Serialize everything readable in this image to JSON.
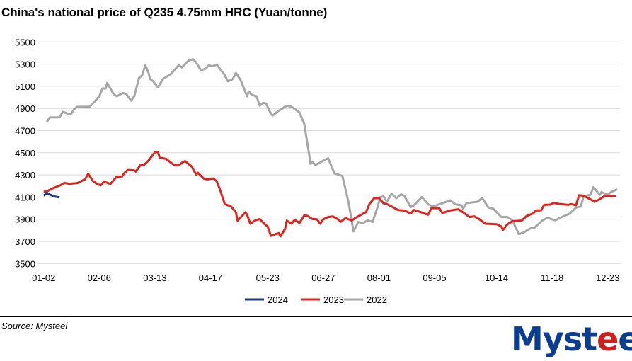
{
  "title": "China's national price of Q235 4.75mm HRC (Yuan/tonne)",
  "source": "Source: Mysteel",
  "logo": {
    "text": "Mysteel",
    "colors": {
      "main": "#0a3d8f",
      "accent": "#d11f1f"
    }
  },
  "chart_data": {
    "type": "line",
    "title": "China's national price of Q235 4.75mm HRC (Yuan/tonne)",
    "xlabel": "",
    "ylabel": "",
    "ylim": [
      3500,
      5500
    ],
    "yticks": [
      3500,
      3700,
      3900,
      4100,
      4300,
      4500,
      4700,
      4900,
      5100,
      5300,
      5500
    ],
    "xticks": [
      "01-02",
      "02-06",
      "03-13",
      "04-17",
      "05-23",
      "06-27",
      "08-01",
      "09-05",
      "10-14",
      "11-18",
      "12-23"
    ],
    "grid": "horizontal",
    "legend": "bottom",
    "series": [
      {
        "name": "2024",
        "color": "#1f3a8a",
        "points": [
          [
            "01-02",
            4112
          ],
          [
            "01-04",
            4137
          ],
          [
            "01-07",
            4115
          ],
          [
            "01-09",
            4105
          ],
          [
            "01-12",
            4097
          ]
        ]
      },
      {
        "name": "2023",
        "color": "#e0231c",
        "points": [
          [
            "01-02",
            4150
          ],
          [
            "01-04",
            4150
          ],
          [
            "01-07",
            4175
          ],
          [
            "01-10",
            4192
          ],
          [
            "01-13",
            4210
          ],
          [
            "01-15",
            4228
          ],
          [
            "01-18",
            4220
          ],
          [
            "01-23",
            4225
          ],
          [
            "01-28",
            4260
          ],
          [
            "01-30",
            4310
          ],
          [
            "02-02",
            4245
          ],
          [
            "02-05",
            4215
          ],
          [
            "02-07",
            4207
          ],
          [
            "02-09",
            4240
          ],
          [
            "02-13",
            4218
          ],
          [
            "02-17",
            4285
          ],
          [
            "02-20",
            4280
          ],
          [
            "02-22",
            4320
          ],
          [
            "02-24",
            4345
          ],
          [
            "02-28",
            4340
          ],
          [
            "03-01",
            4330
          ],
          [
            "03-04",
            4390
          ],
          [
            "03-06",
            4388
          ],
          [
            "03-09",
            4430
          ],
          [
            "03-13",
            4505
          ],
          [
            "03-15",
            4505
          ],
          [
            "03-16",
            4455
          ],
          [
            "03-20",
            4445
          ],
          [
            "03-25",
            4390
          ],
          [
            "03-28",
            4385
          ],
          [
            "03-30",
            4410
          ],
          [
            "04-01",
            4425
          ],
          [
            "04-05",
            4377
          ],
          [
            "04-08",
            4303
          ],
          [
            "04-09",
            4320
          ],
          [
            "04-13",
            4265
          ],
          [
            "04-15",
            4260
          ],
          [
            "04-19",
            4267
          ],
          [
            "04-21",
            4240
          ],
          [
            "04-23",
            4165
          ],
          [
            "04-26",
            4037
          ],
          [
            "04-30",
            4015
          ],
          [
            "05-03",
            3962
          ],
          [
            "05-04",
            3887
          ],
          [
            "05-09",
            3962
          ],
          [
            "05-10",
            3940
          ],
          [
            "05-12",
            3860
          ],
          [
            "05-15",
            3888
          ],
          [
            "05-18",
            3902
          ],
          [
            "05-21",
            3856
          ],
          [
            "05-23",
            3835
          ],
          [
            "05-25",
            3750
          ],
          [
            "05-30",
            3775
          ],
          [
            "05-31",
            3745
          ],
          [
            "06-03",
            3813
          ],
          [
            "06-04",
            3888
          ],
          [
            "06-07",
            3860
          ],
          [
            "06-09",
            3894
          ],
          [
            "06-12",
            3866
          ],
          [
            "06-14",
            3910
          ],
          [
            "06-15",
            3936
          ],
          [
            "06-17",
            3930
          ],
          [
            "06-20",
            3902
          ],
          [
            "06-23",
            3900
          ],
          [
            "06-25",
            3860
          ],
          [
            "06-27",
            3900
          ],
          [
            "06-30",
            3920
          ],
          [
            "07-03",
            3925
          ],
          [
            "07-06",
            3902
          ],
          [
            "07-08",
            3877
          ],
          [
            "07-11",
            3910
          ],
          [
            "07-15",
            3888
          ],
          [
            "07-17",
            3910
          ],
          [
            "07-24",
            3966
          ],
          [
            "07-26",
            4037
          ],
          [
            "07-29",
            4090
          ],
          [
            "08-01",
            4090
          ],
          [
            "08-04",
            4043
          ],
          [
            "08-06",
            4037
          ],
          [
            "08-09",
            4015
          ],
          [
            "08-13",
            3983
          ],
          [
            "08-16",
            3980
          ],
          [
            "08-18",
            3973
          ],
          [
            "08-21",
            3952
          ],
          [
            "08-23",
            3983
          ],
          [
            "08-27",
            3966
          ],
          [
            "09-01",
            3940
          ],
          [
            "09-03",
            4000
          ],
          [
            "09-08",
            4000
          ],
          [
            "09-10",
            3955
          ],
          [
            "09-14",
            3977
          ],
          [
            "09-20",
            3990
          ],
          [
            "09-23",
            3962
          ],
          [
            "09-27",
            3920
          ],
          [
            "09-30",
            3926
          ],
          [
            "10-03",
            3902
          ],
          [
            "10-07",
            3860
          ],
          [
            "10-14",
            3855
          ],
          [
            "10-17",
            3835
          ],
          [
            "10-18",
            3802
          ],
          [
            "10-21",
            3856
          ],
          [
            "10-24",
            3882
          ],
          [
            "10-30",
            3888
          ],
          [
            "11-02",
            3930
          ],
          [
            "11-06",
            3952
          ],
          [
            "11-08",
            3980
          ],
          [
            "11-11",
            3980
          ],
          [
            "11-13",
            4030
          ],
          [
            "11-17",
            4032
          ],
          [
            "11-19",
            4047
          ],
          [
            "11-23",
            4037
          ],
          [
            "11-28",
            4030
          ],
          [
            "11-30",
            4037
          ],
          [
            "12-03",
            4025
          ],
          [
            "12-05",
            4117
          ],
          [
            "12-08",
            4110
          ],
          [
            "12-15",
            4058
          ],
          [
            "12-19",
            4090
          ],
          [
            "12-21",
            4110
          ],
          [
            "12-28",
            4107
          ]
        ]
      },
      {
        "name": "2022",
        "color": "#a6a6a6",
        "points": [
          [
            "01-04",
            4780
          ],
          [
            "01-06",
            4820
          ],
          [
            "01-12",
            4820
          ],
          [
            "01-14",
            4870
          ],
          [
            "01-19",
            4845
          ],
          [
            "01-21",
            4890
          ],
          [
            "01-23",
            4915
          ],
          [
            "01-31",
            4915
          ],
          [
            "02-06",
            5010
          ],
          [
            "02-08",
            5080
          ],
          [
            "02-10",
            5080
          ],
          [
            "02-11",
            5130
          ],
          [
            "02-15",
            5030
          ],
          [
            "02-17",
            5010
          ],
          [
            "02-21",
            5040
          ],
          [
            "02-23",
            5030
          ],
          [
            "02-26",
            4970
          ],
          [
            "02-28",
            5010
          ],
          [
            "03-03",
            5175
          ],
          [
            "03-05",
            5200
          ],
          [
            "03-07",
            5290
          ],
          [
            "03-09",
            5220
          ],
          [
            "03-10",
            5165
          ],
          [
            "03-12",
            5145
          ],
          [
            "03-15",
            5090
          ],
          [
            "03-18",
            5165
          ],
          [
            "03-23",
            5210
          ],
          [
            "03-28",
            5290
          ],
          [
            "03-30",
            5270
          ],
          [
            "04-03",
            5330
          ],
          [
            "04-06",
            5345
          ],
          [
            "04-08",
            5315
          ],
          [
            "04-11",
            5245
          ],
          [
            "04-14",
            5260
          ],
          [
            "04-16",
            5290
          ],
          [
            "04-18",
            5280
          ],
          [
            "04-21",
            5295
          ],
          [
            "04-26",
            5200
          ],
          [
            "04-28",
            5145
          ],
          [
            "05-01",
            5165
          ],
          [
            "05-03",
            5220
          ],
          [
            "05-06",
            5155
          ],
          [
            "05-10",
            5010
          ],
          [
            "05-11",
            5053
          ],
          [
            "05-13",
            5022
          ],
          [
            "05-16",
            5010
          ],
          [
            "05-18",
            4925
          ],
          [
            "05-20",
            4950
          ],
          [
            "05-22",
            4945
          ],
          [
            "05-24",
            4880
          ],
          [
            "05-26",
            4835
          ],
          [
            "05-30",
            4880
          ],
          [
            "06-04",
            4925
          ],
          [
            "06-07",
            4915
          ],
          [
            "06-12",
            4865
          ],
          [
            "06-15",
            4760
          ],
          [
            "06-19",
            4400
          ],
          [
            "06-20",
            4420
          ],
          [
            "06-22",
            4388
          ],
          [
            "06-27",
            4430
          ],
          [
            "06-30",
            4450
          ],
          [
            "07-04",
            4315
          ],
          [
            "07-09",
            4290
          ],
          [
            "07-13",
            4045
          ],
          [
            "07-16",
            3790
          ],
          [
            "07-19",
            3875
          ],
          [
            "07-22",
            3865
          ],
          [
            "07-25",
            3890
          ],
          [
            "07-28",
            3875
          ],
          [
            "07-31",
            4005
          ],
          [
            "08-02",
            4100
          ],
          [
            "08-04",
            4105
          ],
          [
            "08-06",
            4058
          ],
          [
            "08-09",
            4130
          ],
          [
            "08-12",
            4090
          ],
          [
            "08-15",
            4125
          ],
          [
            "08-17",
            4110
          ],
          [
            "08-21",
            4010
          ],
          [
            "08-23",
            4025
          ],
          [
            "08-28",
            4100
          ],
          [
            "09-01",
            4035
          ],
          [
            "09-04",
            4015
          ],
          [
            "09-08",
            4035
          ],
          [
            "09-15",
            4070
          ],
          [
            "09-18",
            4035
          ],
          [
            "09-22",
            4025
          ],
          [
            "09-23",
            3995
          ],
          [
            "09-25",
            4045
          ],
          [
            "10-02",
            4058
          ],
          [
            "10-05",
            4090
          ],
          [
            "10-09",
            4005
          ],
          [
            "10-12",
            3995
          ],
          [
            "10-17",
            3920
          ],
          [
            "10-21",
            3920
          ],
          [
            "10-24",
            3890
          ],
          [
            "10-28",
            3765
          ],
          [
            "10-31",
            3780
          ],
          [
            "11-04",
            3815
          ],
          [
            "11-07",
            3825
          ],
          [
            "11-12",
            3890
          ],
          [
            "11-15",
            3913
          ],
          [
            "11-20",
            3890
          ],
          [
            "11-24",
            3920
          ],
          [
            "11-29",
            3950
          ],
          [
            "12-03",
            4005
          ],
          [
            "12-06",
            4015
          ],
          [
            "12-08",
            4110
          ],
          [
            "12-12",
            4120
          ],
          [
            "12-14",
            4190
          ],
          [
            "12-18",
            4120
          ],
          [
            "12-19",
            4145
          ],
          [
            "12-23",
            4120
          ],
          [
            "12-25",
            4145
          ],
          [
            "12-29",
            4170
          ]
        ]
      }
    ]
  }
}
